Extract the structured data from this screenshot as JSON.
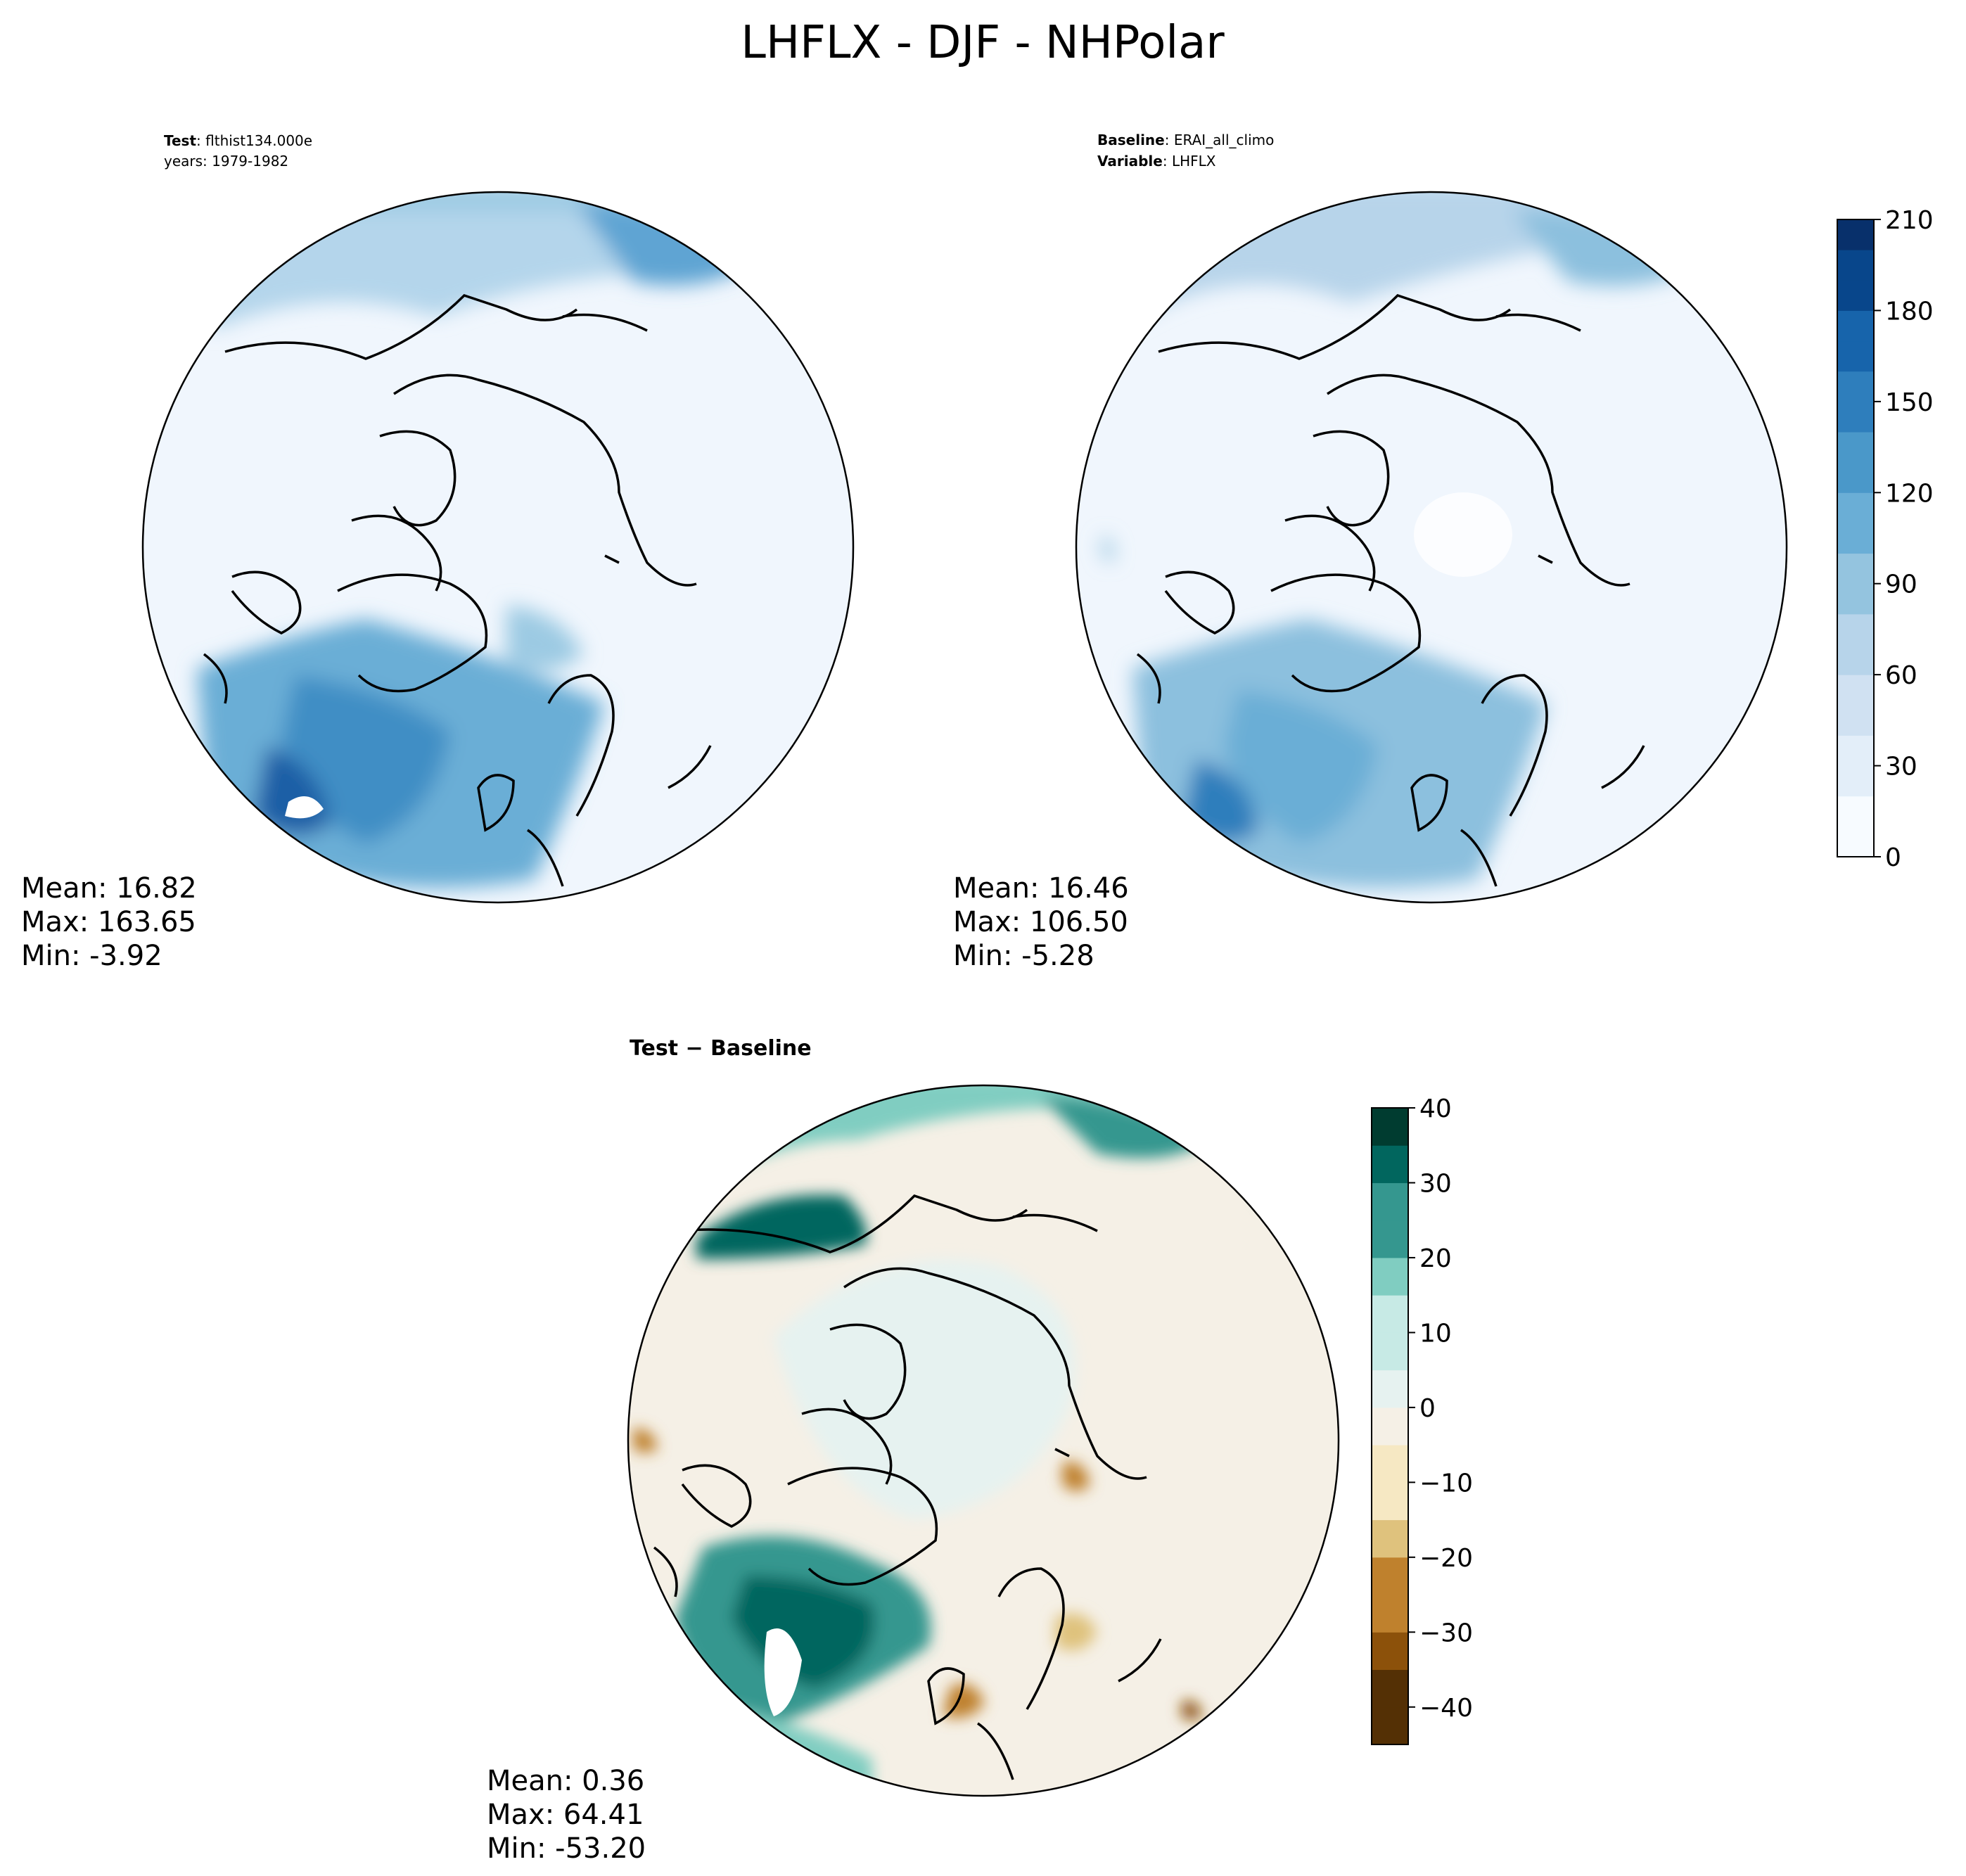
{
  "figure": {
    "title": "LHFLX - DJF - NHPolar"
  },
  "panels": {
    "test": {
      "label_key": "Test",
      "label_value": "flthist134.000e",
      "years": "years: 1979-1982",
      "stats": [
        "Mean: 16.82",
        "Max: 163.65",
        "Min: -3.92"
      ]
    },
    "baseline": {
      "label_key": "Baseline",
      "label_value": "ERAI_all_climo",
      "variable_key": "Variable",
      "variable_value": "LHFLX",
      "stats": [
        "Mean: 16.46",
        "Max: 106.50",
        "Min: -5.28"
      ]
    },
    "diff": {
      "title": "Test − Baseline",
      "stats": [
        "Mean:  0.36",
        "Max: 64.41",
        "Min: -53.20"
      ]
    }
  },
  "colors": {
    "blues": [
      "#f7fbff",
      "#e3eef9",
      "#d0e1f2",
      "#b7d4ea",
      "#94c4df",
      "#6aaed6",
      "#4a98c9",
      "#2e7ebc",
      "#1764ab",
      "#08468b",
      "#08306b"
    ],
    "diverging_brbg": [
      "#543005",
      "#8c510a",
      "#bf812d",
      "#dfc27d",
      "#f6e8c3",
      "#f5f0e6",
      "#e6f2f0",
      "#c7eae5",
      "#80cdc1",
      "#35978f",
      "#01665e",
      "#003c30"
    ]
  },
  "chart_data": [
    {
      "type": "heatmap",
      "name": "test",
      "projection": "north-polar-stereographic",
      "colorbar": {
        "ticks": [
          "0",
          "30",
          "60",
          "90",
          "120",
          "150",
          "180",
          "210"
        ],
        "range": [
          0,
          210
        ]
      },
      "stats": {
        "mean": 16.82,
        "max": 163.65,
        "min": -3.92
      }
    },
    {
      "type": "heatmap",
      "name": "baseline",
      "projection": "north-polar-stereographic",
      "colorbar": {
        "ticks": [
          "0",
          "30",
          "60",
          "90",
          "120",
          "150",
          "180",
          "210"
        ],
        "range": [
          0,
          210
        ]
      },
      "stats": {
        "mean": 16.46,
        "max": 106.5,
        "min": -5.28
      }
    },
    {
      "type": "heatmap",
      "name": "difference",
      "projection": "north-polar-stereographic",
      "colorbar": {
        "ticks": [
          "40",
          "30",
          "20",
          "10",
          "0",
          "−10",
          "−20",
          "−30",
          "−40"
        ],
        "range": [
          -45,
          40
        ]
      },
      "stats": {
        "mean": 0.36,
        "max": 64.41,
        "min": -53.2
      }
    }
  ]
}
